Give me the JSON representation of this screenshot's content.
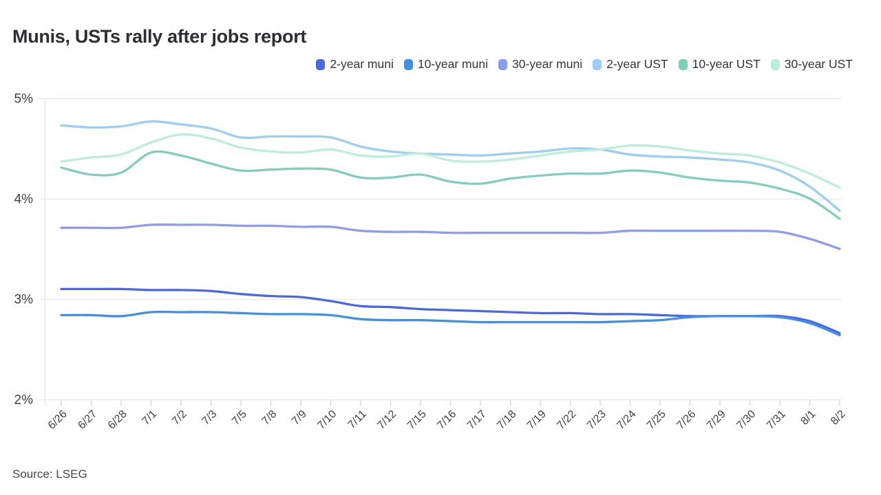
{
  "title": "Munis, USTs rally after jobs report",
  "source": "Source: LSEG",
  "colors": {
    "grid": "#e8e8ea",
    "axis": "#e3e3e6",
    "tick": "#d6d6da",
    "axis_text": "#3e3e46",
    "title_text": "#2d2d35"
  },
  "chart_data": {
    "type": "line",
    "title": "Munis, USTs rally after jobs report",
    "xlabel": "",
    "ylabel": "",
    "ylim": [
      2,
      5
    ],
    "yticks": [
      {
        "value": 5,
        "label": "5%"
      },
      {
        "value": 4,
        "label": "4%"
      },
      {
        "value": 3,
        "label": "3%"
      },
      {
        "value": 2,
        "label": "2%"
      }
    ],
    "grid": "horizontal",
    "legend_position": "top-right",
    "x": [
      "6/26",
      "6/27",
      "6/28",
      "7/1",
      "7/2",
      "7/3",
      "7/5",
      "7/8",
      "7/9",
      "7/10",
      "7/11",
      "7/12",
      "7/15",
      "7/16",
      "7/17",
      "7/18",
      "7/19",
      "7/22",
      "7/23",
      "7/24",
      "7/25",
      "7/26",
      "7/29",
      "7/30",
      "7/31",
      "8/1",
      "8/2"
    ],
    "series": [
      {
        "name": "2-year muni",
        "color": "#4a68e6",
        "values": [
          3.1,
          3.1,
          3.1,
          3.09,
          3.09,
          3.08,
          3.05,
          3.03,
          3.02,
          2.98,
          2.93,
          2.92,
          2.9,
          2.89,
          2.88,
          2.87,
          2.86,
          2.86,
          2.85,
          2.85,
          2.84,
          2.83,
          2.83,
          2.83,
          2.83,
          2.78,
          2.66
        ]
      },
      {
        "name": "10-year muni",
        "color": "#4190e8",
        "values": [
          2.84,
          2.84,
          2.83,
          2.87,
          2.87,
          2.87,
          2.86,
          2.85,
          2.85,
          2.84,
          2.8,
          2.79,
          2.79,
          2.78,
          2.77,
          2.77,
          2.77,
          2.77,
          2.77,
          2.78,
          2.79,
          2.82,
          2.83,
          2.83,
          2.82,
          2.76,
          2.64
        ]
      },
      {
        "name": "30-year muni",
        "color": "#8e9cef",
        "values": [
          3.71,
          3.71,
          3.71,
          3.74,
          3.74,
          3.74,
          3.73,
          3.73,
          3.72,
          3.72,
          3.68,
          3.67,
          3.67,
          3.66,
          3.66,
          3.66,
          3.66,
          3.66,
          3.66,
          3.68,
          3.68,
          3.68,
          3.68,
          3.68,
          3.67,
          3.6,
          3.5
        ]
      },
      {
        "name": "2-year UST",
        "color": "#9bcef4",
        "values": [
          4.73,
          4.71,
          4.72,
          4.77,
          4.74,
          4.7,
          4.61,
          4.62,
          4.62,
          4.61,
          4.52,
          4.47,
          4.45,
          4.44,
          4.43,
          4.45,
          4.47,
          4.5,
          4.49,
          4.44,
          4.42,
          4.41,
          4.39,
          4.36,
          4.28,
          4.12,
          3.88
        ]
      },
      {
        "name": "10-year UST",
        "color": "#7fd0b8",
        "values": [
          4.31,
          4.24,
          4.26,
          4.46,
          4.43,
          4.35,
          4.28,
          4.29,
          4.3,
          4.29,
          4.21,
          4.21,
          4.24,
          4.17,
          4.15,
          4.2,
          4.23,
          4.25,
          4.25,
          4.28,
          4.26,
          4.21,
          4.18,
          4.16,
          4.1,
          4.0,
          3.8
        ]
      },
      {
        "name": "30-year UST",
        "color": "#bceedc",
        "values": [
          4.37,
          4.41,
          4.44,
          4.56,
          4.64,
          4.6,
          4.51,
          4.47,
          4.46,
          4.49,
          4.43,
          4.42,
          4.45,
          4.38,
          4.37,
          4.39,
          4.43,
          4.47,
          4.49,
          4.53,
          4.52,
          4.48,
          4.45,
          4.43,
          4.36,
          4.25,
          4.11
        ]
      }
    ]
  }
}
